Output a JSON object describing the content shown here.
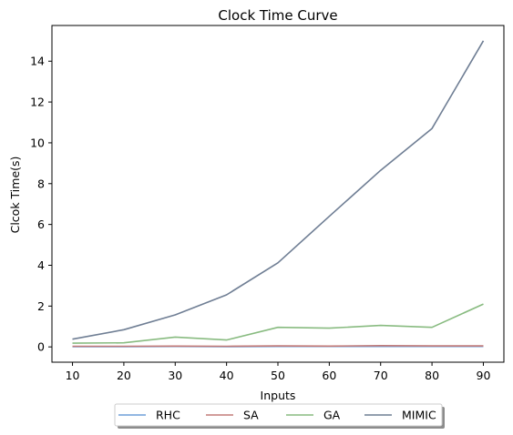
{
  "chart_data": {
    "type": "line",
    "title": "Clock Time Curve",
    "xlabel": "Inputs",
    "ylabel": "Clcok Time(s)",
    "x": [
      10,
      20,
      30,
      40,
      50,
      60,
      70,
      80,
      90
    ],
    "xticks": [
      10,
      20,
      30,
      40,
      50,
      60,
      70,
      80,
      90
    ],
    "yticks": [
      0,
      2,
      4,
      6,
      8,
      10,
      12,
      14
    ],
    "xlim": [
      6,
      94
    ],
    "ylim": [
      -0.75,
      15.75
    ],
    "grid": false,
    "legend_position": "bottom-center",
    "series": [
      {
        "name": "RHC",
        "color": "#6f9fd8",
        "values": [
          0.01,
          0.01,
          0.02,
          0.01,
          0.02,
          0.02,
          0.02,
          0.02,
          0.02
        ]
      },
      {
        "name": "SA",
        "color": "#c47b78",
        "values": [
          0.03,
          0.03,
          0.04,
          0.03,
          0.05,
          0.04,
          0.06,
          0.05,
          0.05
        ]
      },
      {
        "name": "GA",
        "color": "#88bb80",
        "values": [
          0.18,
          0.2,
          0.48,
          0.34,
          0.96,
          0.92,
          1.05,
          0.96,
          2.1
        ]
      },
      {
        "name": "MIMIC",
        "color": "#6f7e94",
        "values": [
          0.38,
          0.84,
          1.57,
          2.55,
          4.12,
          6.4,
          8.65,
          10.7,
          15.0
        ]
      }
    ]
  }
}
